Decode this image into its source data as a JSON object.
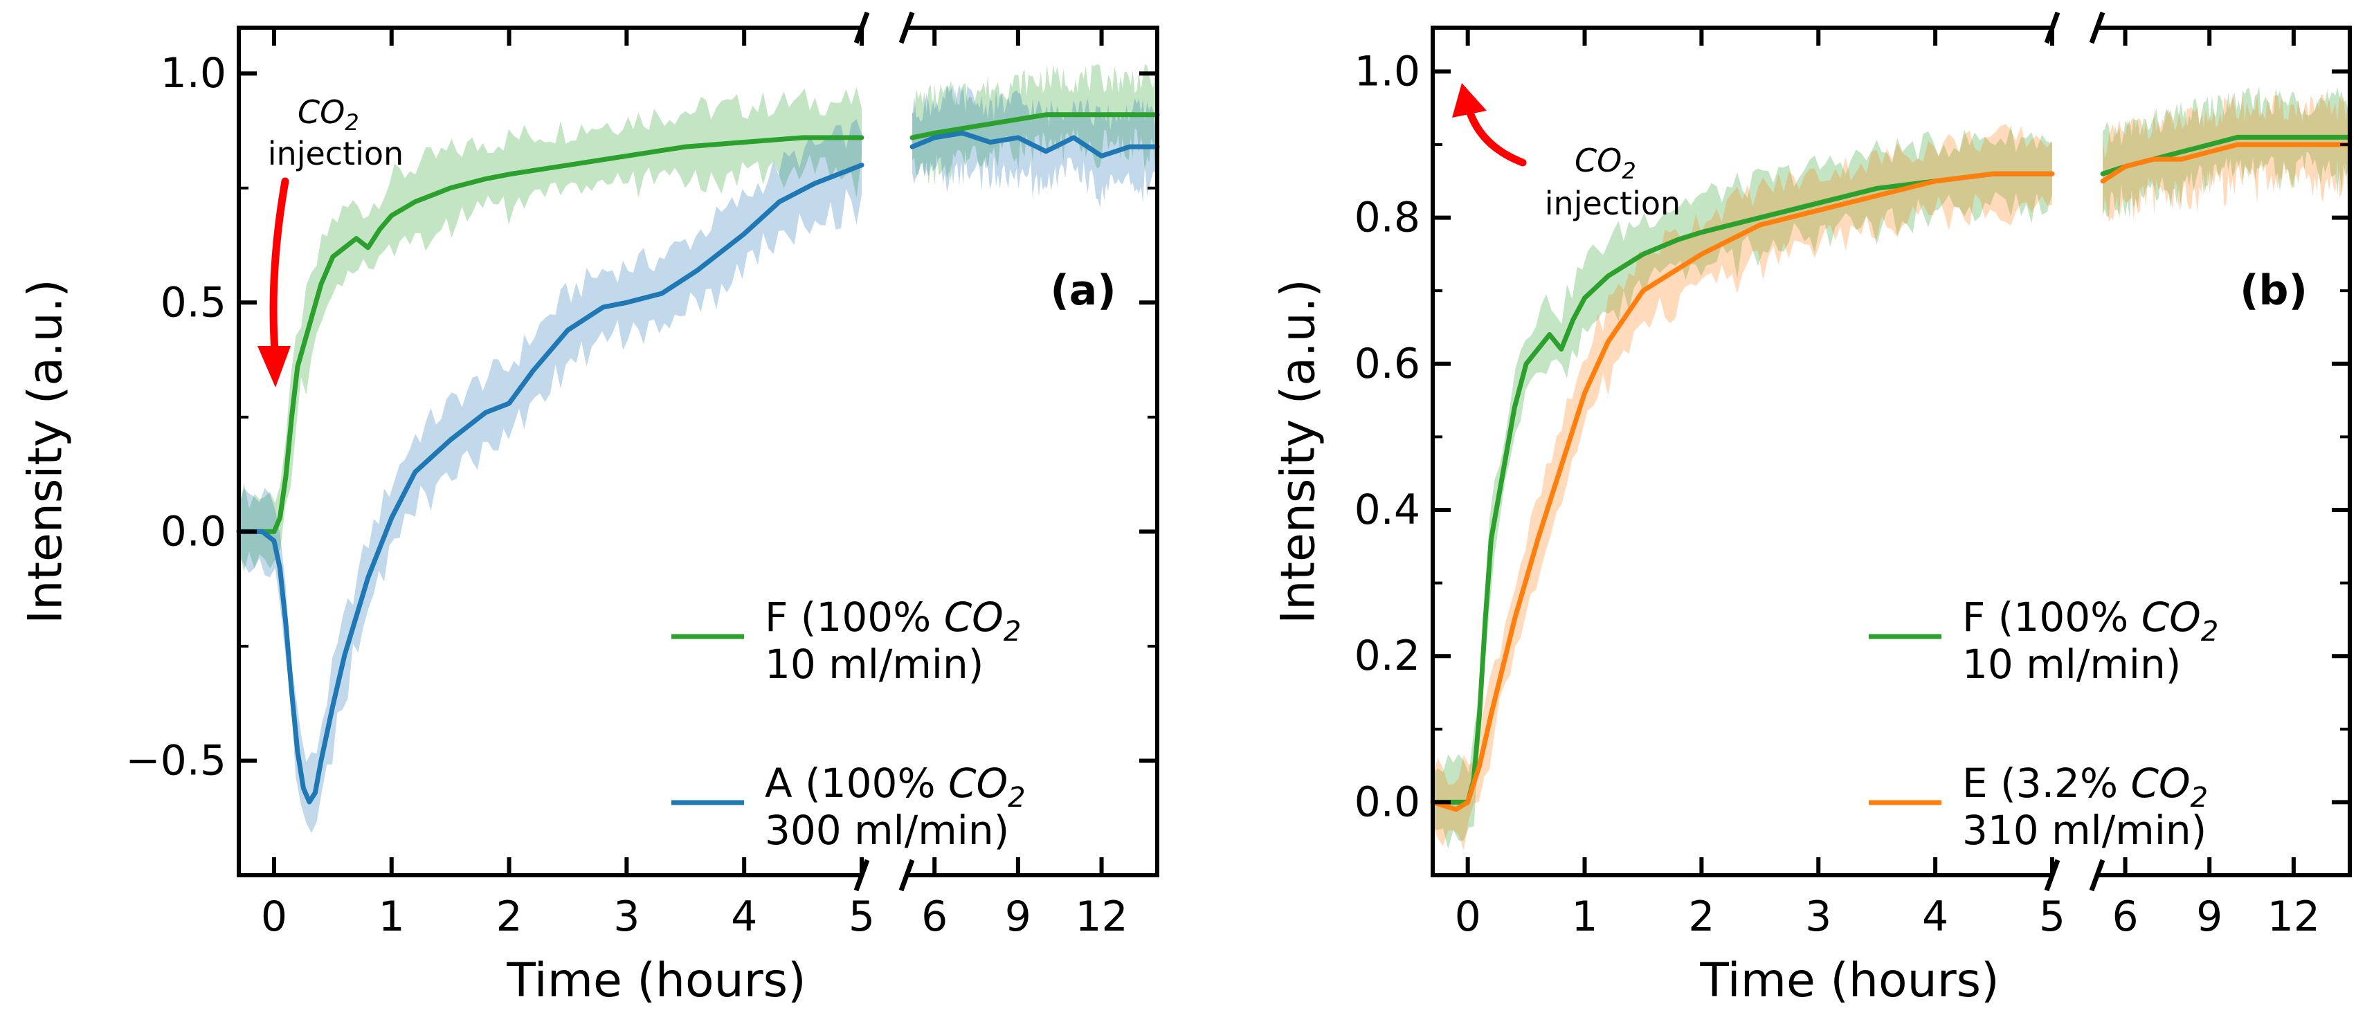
{
  "colors": {
    "green": "#2ca02c",
    "blue": "#1f77b4",
    "orange": "#ff7f0e",
    "arrow": "#ff0000"
  },
  "chart_data": [
    {
      "type": "line",
      "panel_label": "(a)",
      "xlabel": "Time (hours)",
      "ylabel": "Intensity (a.u.)",
      "broken_x_axis": true,
      "left_segment": {
        "xlim": [
          -0.3,
          5.0
        ],
        "xticks": [
          "0",
          "1",
          "2",
          "3",
          "4",
          "5"
        ]
      },
      "right_segment": {
        "xlim": [
          5.0,
          14.0
        ],
        "xticks": [
          "6",
          "9",
          "12"
        ]
      },
      "ylim": [
        -0.75,
        1.1
      ],
      "yticks": [
        "−0.5",
        "0.0",
        "0.5",
        "1.0"
      ],
      "ytick_values": [
        -0.5,
        0.0,
        0.5,
        1.0
      ],
      "annotation": {
        "line1": "CO",
        "sub": "2",
        "line2": "injection"
      },
      "legend_location": "lower right",
      "series": [
        {
          "name_line1": "F (100% CO",
          "name_sub": "2",
          "name_line2": "10 ml/min)",
          "color_key": "green",
          "left": {
            "x": [
              -0.3,
              -0.1,
              0.0,
              0.05,
              0.1,
              0.15,
              0.2,
              0.3,
              0.4,
              0.5,
              0.6,
              0.7,
              0.8,
              0.9,
              1.0,
              1.2,
              1.5,
              1.8,
              2.0,
              2.5,
              3.0,
              3.5,
              4.0,
              4.5,
              5.0
            ],
            "y": [
              0.0,
              0.0,
              0.0,
              0.03,
              0.12,
              0.25,
              0.36,
              0.45,
              0.54,
              0.6,
              0.62,
              0.64,
              0.62,
              0.66,
              0.69,
              0.72,
              0.75,
              0.77,
              0.78,
              0.8,
              0.82,
              0.84,
              0.85,
              0.86,
              0.86
            ]
          },
          "right": {
            "x": [
              5.2,
              6,
              7,
              8,
              9,
              10,
              11,
              12,
              13,
              14
            ],
            "y": [
              0.86,
              0.87,
              0.88,
              0.89,
              0.9,
              0.91,
              0.91,
              0.91,
              0.91,
              0.91
            ]
          }
        },
        {
          "name_line1": "A (100% CO",
          "name_sub": "2",
          "name_line2": "300 ml/min)",
          "color_key": "blue",
          "left": {
            "x": [
              -0.3,
              -0.1,
              0.0,
              0.05,
              0.1,
              0.15,
              0.2,
              0.25,
              0.3,
              0.35,
              0.4,
              0.5,
              0.6,
              0.8,
              1.0,
              1.2,
              1.5,
              1.8,
              2.0,
              2.2,
              2.5,
              2.8,
              3.0,
              3.3,
              3.6,
              4.0,
              4.3,
              4.6,
              5.0
            ],
            "y": [
              0.0,
              0.0,
              -0.02,
              -0.08,
              -0.2,
              -0.35,
              -0.48,
              -0.56,
              -0.59,
              -0.57,
              -0.5,
              -0.38,
              -0.27,
              -0.1,
              0.03,
              0.13,
              0.2,
              0.26,
              0.28,
              0.35,
              0.44,
              0.49,
              0.5,
              0.52,
              0.57,
              0.65,
              0.72,
              0.76,
              0.8
            ]
          },
          "right": {
            "x": [
              5.2,
              6,
              7,
              8,
              9,
              10,
              11,
              12,
              13,
              14
            ],
            "y": [
              0.84,
              0.86,
              0.87,
              0.85,
              0.86,
              0.83,
              0.86,
              0.82,
              0.84,
              0.84
            ]
          }
        }
      ]
    },
    {
      "type": "line",
      "panel_label": "(b)",
      "xlabel": "Time (hours)",
      "ylabel": "Intensity (a.u.)",
      "broken_x_axis": true,
      "left_segment": {
        "xlim": [
          -0.3,
          5.0
        ],
        "xticks": [
          "0",
          "1",
          "2",
          "3",
          "4",
          "5"
        ]
      },
      "right_segment": {
        "xlim": [
          5.0,
          14.0
        ],
        "xticks": [
          "6",
          "9",
          "12"
        ]
      },
      "ylim": [
        -0.1,
        1.06
      ],
      "yticks": [
        "0.0",
        "0.2",
        "0.4",
        "0.6",
        "0.8",
        "1.0"
      ],
      "ytick_values": [
        0.0,
        0.2,
        0.4,
        0.6,
        0.8,
        1.0
      ],
      "annotation": {
        "line1": "CO",
        "sub": "2",
        "line2": "injection"
      },
      "legend_location": "lower right",
      "series": [
        {
          "name_line1": "F (100% CO",
          "name_sub": "2",
          "name_line2": "10 ml/min)",
          "color_key": "green",
          "left": {
            "x": [
              -0.3,
              -0.1,
              0.0,
              0.05,
              0.1,
              0.15,
              0.2,
              0.3,
              0.4,
              0.5,
              0.6,
              0.7,
              0.8,
              0.9,
              1.0,
              1.2,
              1.5,
              1.8,
              2.0,
              2.5,
              3.0,
              3.5,
              4.0,
              4.5,
              5.0
            ],
            "y": [
              0.0,
              0.0,
              0.0,
              0.03,
              0.12,
              0.25,
              0.36,
              0.45,
              0.54,
              0.6,
              0.62,
              0.64,
              0.62,
              0.66,
              0.69,
              0.72,
              0.75,
              0.77,
              0.78,
              0.8,
              0.82,
              0.84,
              0.85,
              0.86,
              0.86
            ]
          },
          "right": {
            "x": [
              5.2,
              6,
              7,
              8,
              9,
              10,
              11,
              12,
              13,
              14
            ],
            "y": [
              0.86,
              0.87,
              0.88,
              0.89,
              0.9,
              0.91,
              0.91,
              0.91,
              0.91,
              0.91
            ]
          }
        },
        {
          "name_line1": "E (3.2% CO",
          "name_sub": "2",
          "name_line2": "310 ml/min)",
          "color_key": "orange",
          "left": {
            "x": [
              -0.3,
              -0.1,
              0.0,
              0.1,
              0.2,
              0.4,
              0.6,
              0.8,
              1.0,
              1.2,
              1.5,
              1.8,
              2.0,
              2.5,
              3.0,
              3.5,
              4.0,
              4.5,
              5.0
            ],
            "y": [
              0.0,
              -0.01,
              0.0,
              0.05,
              0.12,
              0.25,
              0.36,
              0.46,
              0.56,
              0.63,
              0.7,
              0.73,
              0.75,
              0.79,
              0.81,
              0.83,
              0.85,
              0.86,
              0.86
            ]
          },
          "right": {
            "x": [
              5.2,
              6,
              7,
              8,
              9,
              10,
              11,
              12,
              13,
              14
            ],
            "y": [
              0.85,
              0.87,
              0.88,
              0.88,
              0.89,
              0.9,
              0.9,
              0.9,
              0.9,
              0.9
            ]
          }
        }
      ]
    }
  ]
}
